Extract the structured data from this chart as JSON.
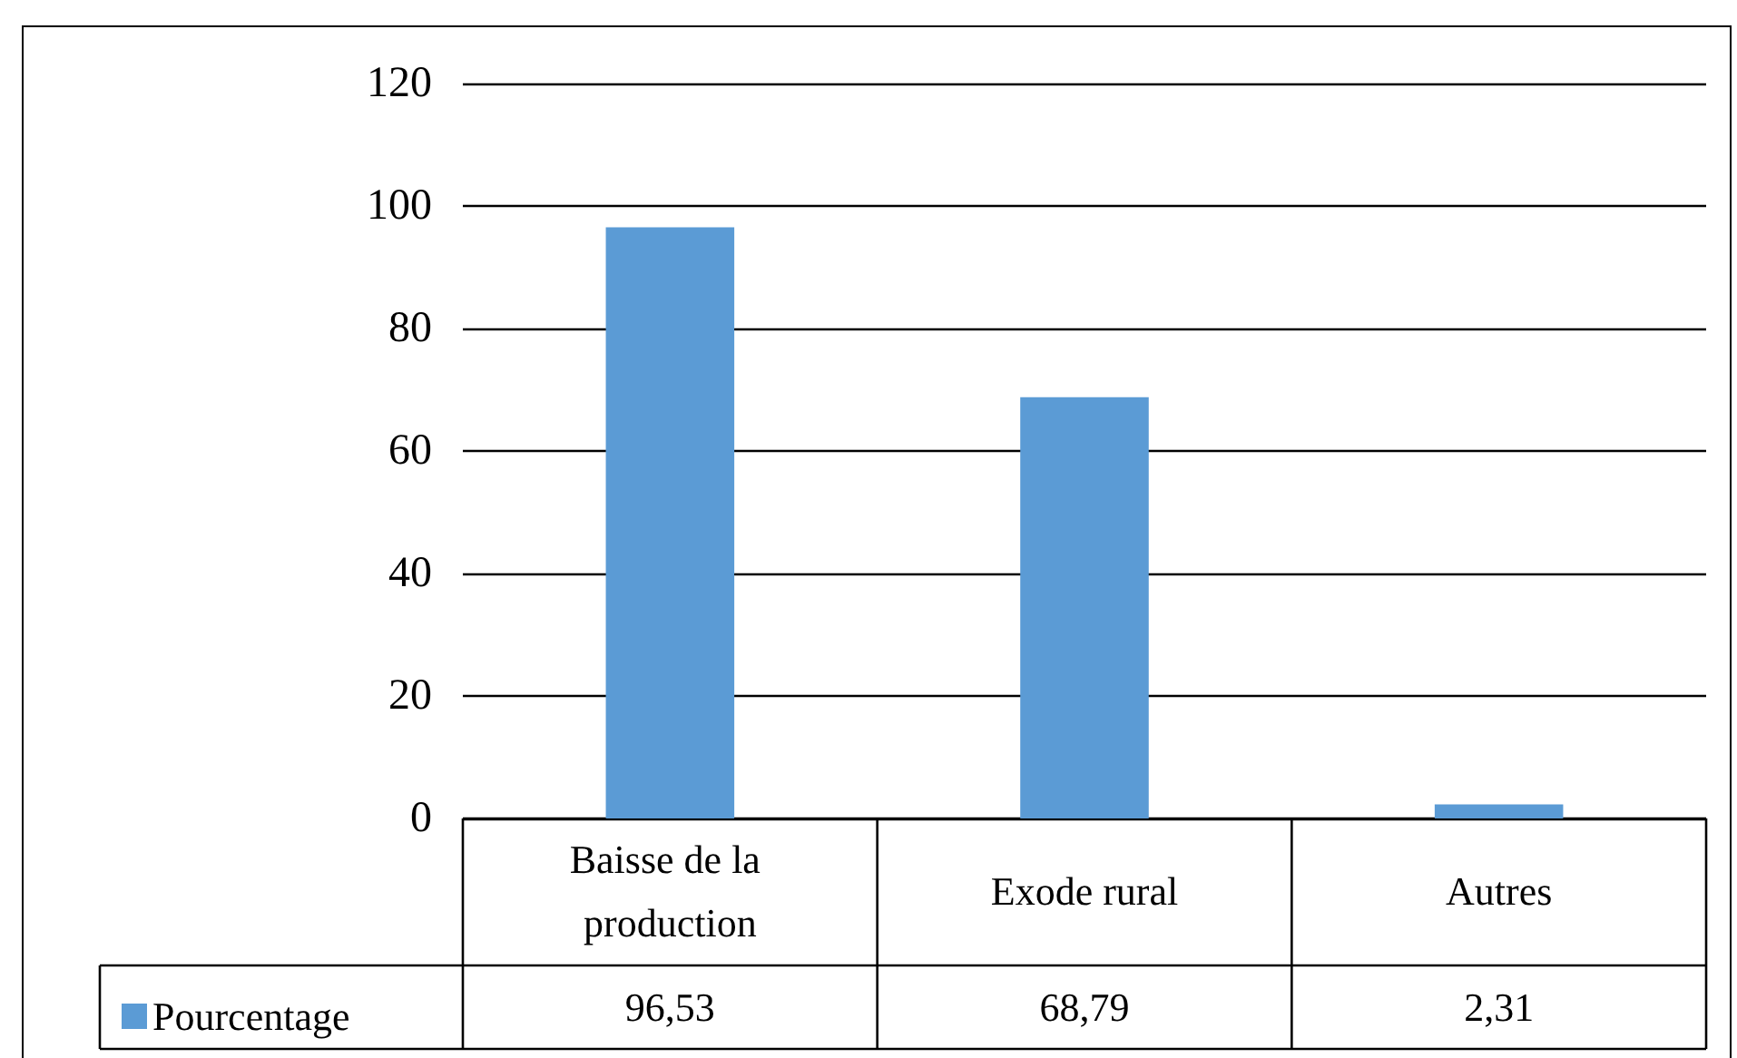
{
  "chart_data": {
    "type": "bar",
    "categories": [
      "Baisse de la production",
      "Exode rural",
      "Autres"
    ],
    "series": [
      {
        "name": "Pourcentage",
        "color": "#5b9bd5",
        "values": [
          96.53,
          68.79,
          2.31
        ],
        "value_labels": [
          "96,53",
          "68,79",
          "2,31"
        ]
      }
    ],
    "ylim": [
      0,
      120
    ],
    "yticks": [
      0,
      20,
      40,
      60,
      80,
      100,
      120
    ],
    "grid": "y",
    "legend": "bottom left"
  }
}
